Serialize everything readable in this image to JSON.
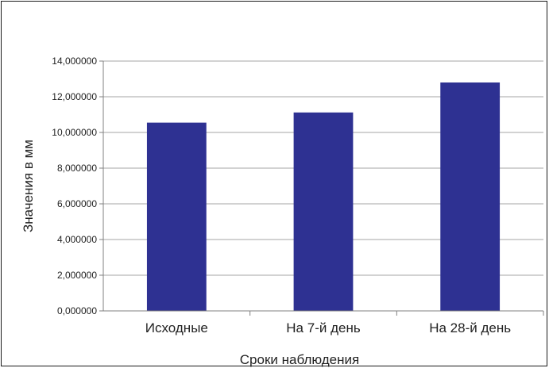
{
  "chart_data": {
    "type": "bar",
    "categories": [
      "Исходные",
      "На 7-й день",
      "На 28-й день"
    ],
    "values": [
      10.55,
      11.12,
      12.8
    ],
    "xlabel": "Сроки наблюдения",
    "ylabel": "Значения в мм",
    "ylim": [
      0,
      14
    ],
    "yticks": [
      0,
      2,
      4,
      6,
      8,
      10,
      12,
      14
    ],
    "ytick_labels": [
      "0,000000",
      "2,000000",
      "4,000000",
      "6,000000",
      "8,000000",
      "10,000000",
      "12,000000",
      "14,000000"
    ],
    "grid": true,
    "legend": "none",
    "colors": {
      "bar": "#2e3192",
      "grid": "#a6a6a6",
      "axis": "#808080"
    }
  }
}
